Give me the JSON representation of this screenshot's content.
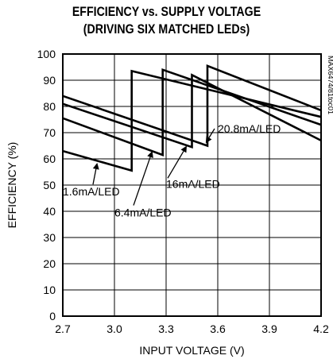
{
  "chart_data": {
    "type": "line",
    "title": "EFFICIENCY vs. SUPPLY VOLTAGE",
    "subtitle": "(DRIVING SIX MATCHED LEDs)",
    "xlabel": "INPUT VOLTAGE (V)",
    "ylabel": "EFFICIENCY (%)",
    "xlim": [
      2.7,
      4.2
    ],
    "ylim": [
      0,
      100
    ],
    "xticks": [
      "2.7",
      "3.0",
      "3.3",
      "3.6",
      "3.9",
      "4.2"
    ],
    "yticks": [
      "0",
      "10",
      "20",
      "30",
      "40",
      "50",
      "60",
      "70",
      "80",
      "90",
      "100"
    ],
    "grid": true,
    "watermark": "MAX6474/81toc01",
    "series": [
      {
        "name": "1.6mA/LED",
        "x": [
          2.7,
          3.1,
          3.1,
          4.2
        ],
        "y": [
          63,
          55.5,
          93.5,
          76
        ]
      },
      {
        "name": "6.4mA/LED",
        "x": [
          2.7,
          3.28,
          3.28,
          4.2
        ],
        "y": [
          75.5,
          61.5,
          94,
          73
        ]
      },
      {
        "name": "16mA/LED",
        "x": [
          2.7,
          3.45,
          3.45,
          4.2
        ],
        "y": [
          81,
          64.5,
          92,
          67
        ]
      },
      {
        "name": "20.8mA/LED",
        "x": [
          2.7,
          3.54,
          3.54,
          4.2
        ],
        "y": [
          84,
          65,
          95.5,
          78.5
        ]
      }
    ],
    "annotations": [
      {
        "text": "1.6mA/LED",
        "arrow_to": [
          2.9,
          58.5
        ],
        "label_at": [
          2.7,
          46
        ]
      },
      {
        "text": "6.4mA/LED",
        "arrow_to": [
          3.22,
          63
        ],
        "label_at": [
          3.0,
          38
        ]
      },
      {
        "text": "16mA/LED",
        "arrow_to": [
          3.42,
          65
        ],
        "label_at": [
          3.3,
          49
        ]
      },
      {
        "text": "20.8mA/LED",
        "arrow_to": [
          3.53,
          66
        ],
        "label_at": [
          3.6,
          70
        ]
      }
    ]
  }
}
